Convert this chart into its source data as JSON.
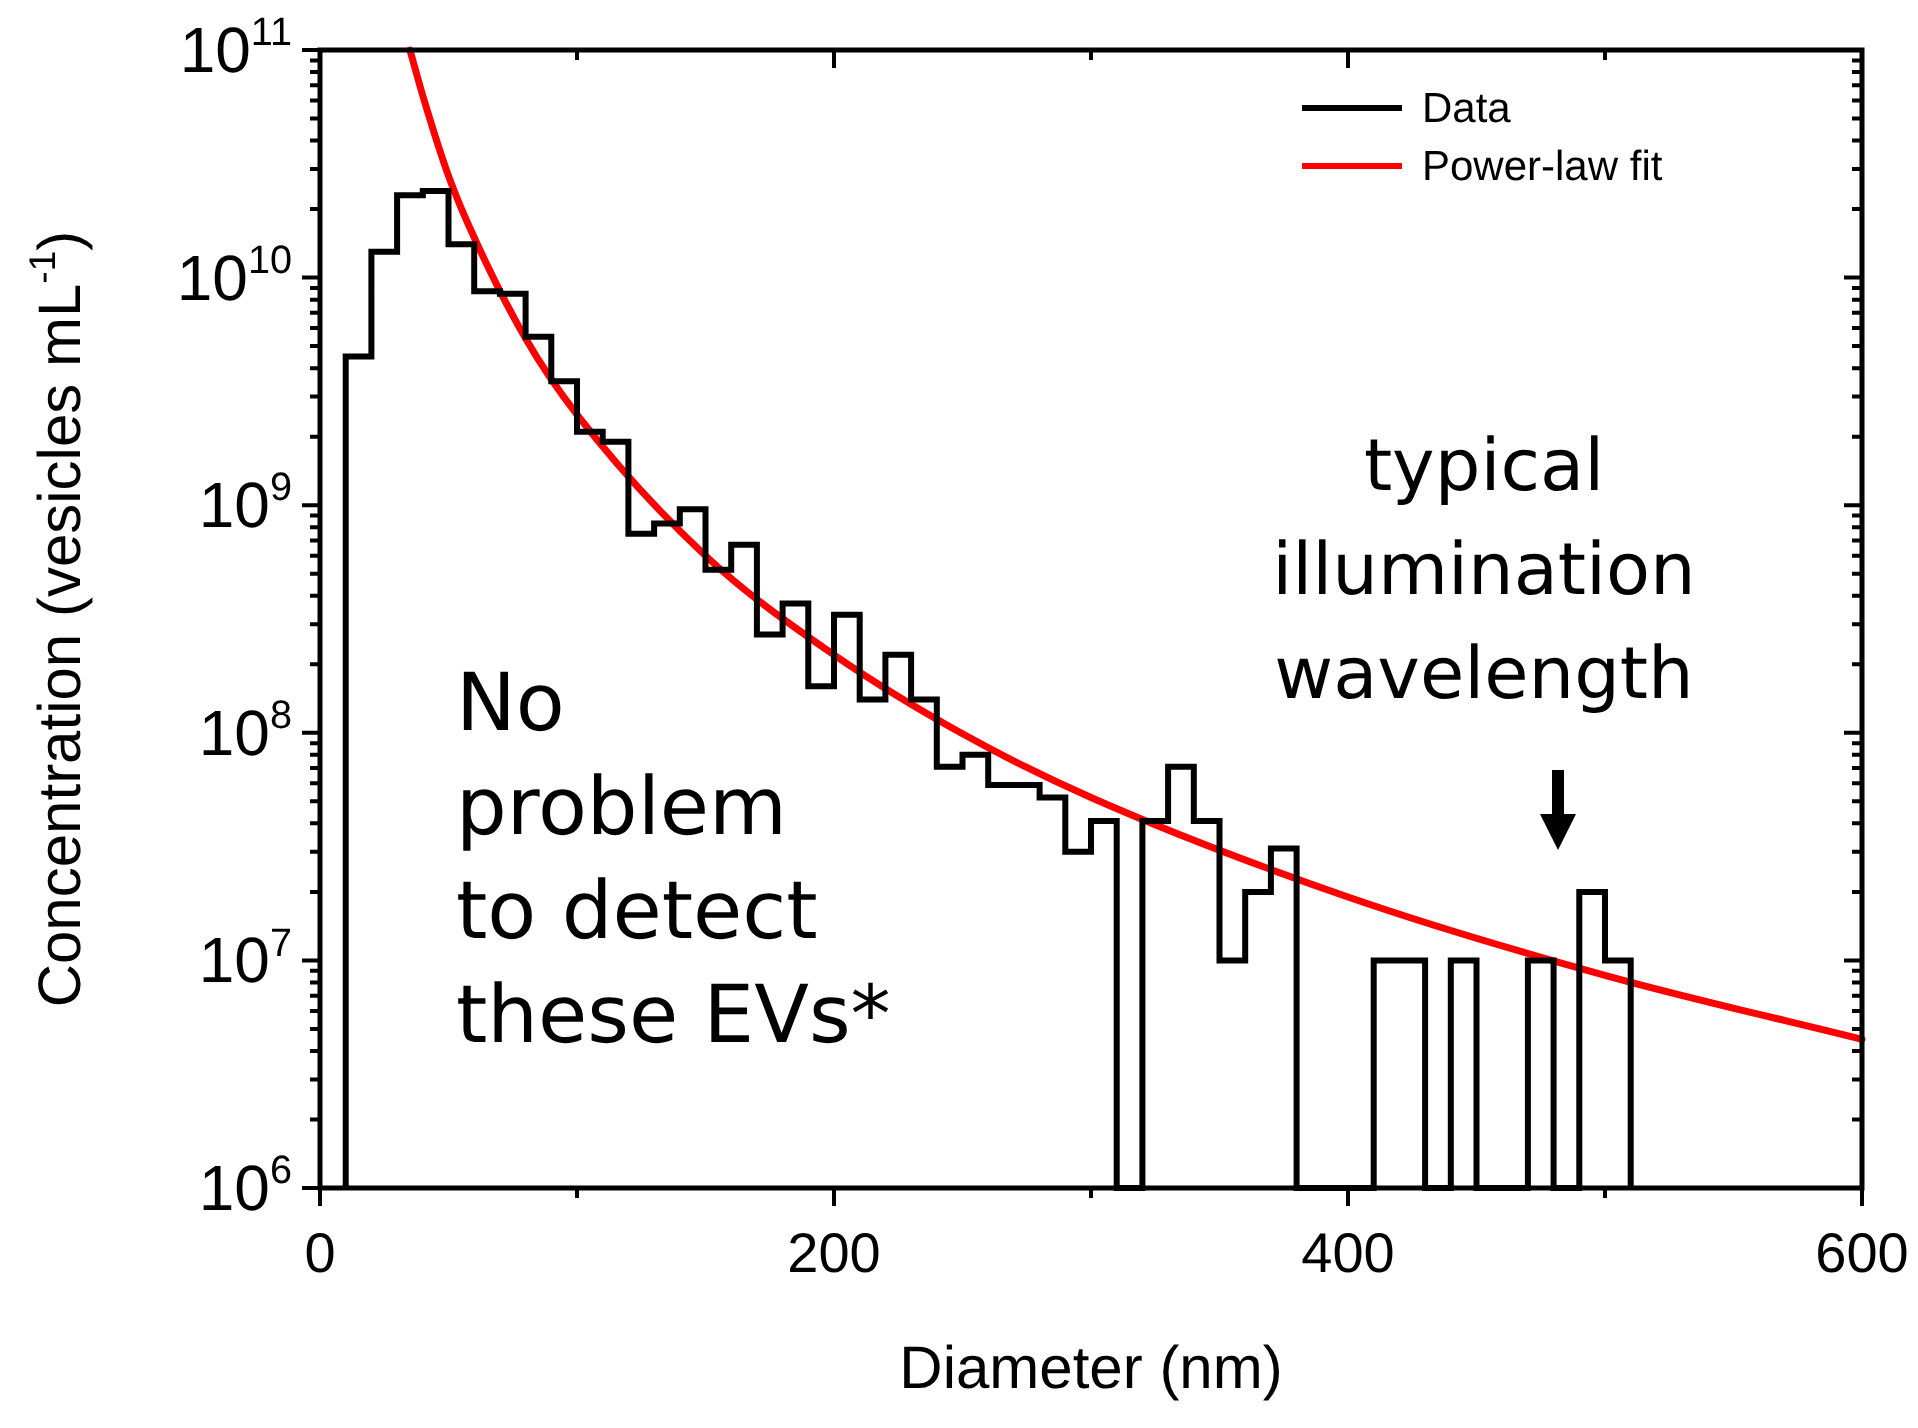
{
  "chart_data": {
    "type": "histogram",
    "xlabel": "Diameter (nm)",
    "ylabel": "Concentration (vesicles mL$^{-1}$)",
    "bins": [
      10,
      20,
      30,
      40,
      50,
      60,
      70,
      80,
      90,
      100,
      110,
      120,
      130,
      140,
      150,
      160,
      170,
      180,
      190,
      200,
      210,
      220,
      230,
      240,
      250,
      260,
      270,
      280,
      290,
      300,
      310,
      320,
      330,
      340,
      350,
      360,
      370,
      380,
      390,
      400,
      410,
      420,
      430,
      440,
      450,
      460,
      470,
      480,
      490,
      500,
      510
    ],
    "series": [
      {
        "name": "Data",
        "color": "#000000",
        "values": [
          4500000000.0,
          13000000000.0,
          23000000000.0,
          24000000000.0,
          14000000000.0,
          8700000000.0,
          8500000000.0,
          5500000000.0,
          3500000000.0,
          2100000000.0,
          1900000000.0,
          750000000.0,
          830000000.0,
          960000000.0,
          520000000.0,
          670000000.0,
          270000000.0,
          370000000.0,
          160000000.0,
          330000000.0,
          140000000.0,
          220000000.0,
          140000000.0,
          71000000.0,
          80000000.0,
          59000000.0,
          59000000.0,
          52000000.0,
          30000000.0,
          41000000.0,
          null,
          41000000.0,
          71000000.0,
          41000000.0,
          10000000.0,
          20000000.0,
          31000000.0,
          null,
          null,
          null,
          10000000.0,
          10000000.0,
          null,
          10000000.0,
          null,
          null,
          10000000.0,
          null,
          20000000.0,
          10000000.0
        ]
      },
      {
        "name": "Power-law fit",
        "type": "line",
        "color": "#ff0000",
        "x": [
          35,
          40,
          50,
          60,
          80,
          100,
          150,
          200,
          250,
          300,
          400,
          500,
          600
        ],
        "values": [
          100000000000.0,
          63000000000.0,
          28000000000.0,
          15000000000.0,
          5400000000.0,
          2500000000.0,
          600000000.0,
          220000000.0,
          99000000.0,
          52000000.0,
          19000000.0,
          8600000.0,
          4500000.0
        ]
      }
    ],
    "xlim": [
      0,
      600
    ],
    "xticks": [
      0,
      {
        "value": 100,
        "label": null
      },
      200,
      {
        "value": 300,
        "label": null
      },
      400,
      {
        "value": 500,
        "label": null
      },
      600
    ],
    "log": "y",
    "ylim": [
      1000000.0,
      100000000000.0
    ],
    "yticks": [
      {
        "value": 1000000.0,
        "label": "10$^{6}$"
      },
      {
        "value": 2000000.0,
        "label": null
      },
      {
        "value": 3000000.0,
        "label": null
      },
      {
        "value": 4000000.0,
        "label": null
      },
      {
        "value": 5000000.0,
        "label": null
      },
      {
        "value": 6000000.0,
        "label": null
      },
      {
        "value": 7000000.0,
        "label": null
      },
      {
        "value": 8000000.0,
        "label": null
      },
      {
        "value": 9000000.0,
        "label": null
      },
      {
        "value": 10000000.0,
        "label": "10$^{7}$"
      },
      {
        "value": 20000000.0,
        "label": null
      },
      {
        "value": 30000000.0,
        "label": null
      },
      {
        "value": 40000000.0,
        "label": null
      },
      {
        "value": 50000000.0,
        "label": null
      },
      {
        "value": 60000000.0,
        "label": null
      },
      {
        "value": 70000000.0,
        "label": null
      },
      {
        "value": 80000000.0,
        "label": null
      },
      {
        "value": 90000000.0,
        "label": null
      },
      {
        "value": 100000000.0,
        "label": "10$^{8}$"
      },
      {
        "value": 200000000.0,
        "label": null
      },
      {
        "value": 300000000.0,
        "label": null
      },
      {
        "value": 400000000.0,
        "label": null
      },
      {
        "value": 500000000.0,
        "label": null
      },
      {
        "value": 600000000.0,
        "label": null
      },
      {
        "value": 700000000.0,
        "label": null
      },
      {
        "value": 800000000.0,
        "label": null
      },
      {
        "value": 900000000.0,
        "label": null
      },
      {
        "value": 1000000000.0,
        "label": "10$^{9}$"
      },
      {
        "value": 2000000000.0,
        "label": null
      },
      {
        "value": 3000000000.0,
        "label": null
      },
      {
        "value": 4000000000.0,
        "label": null
      },
      {
        "value": 5000000000.0,
        "label": null
      },
      {
        "value": 6000000000.0,
        "label": null
      },
      {
        "value": 7000000000.0,
        "label": null
      },
      {
        "value": 8000000000.0,
        "label": null
      },
      {
        "value": 9000000000.0,
        "label": null
      },
      {
        "value": 10000000000.0,
        "label": "10$^{10}$"
      },
      {
        "value": 20000000000.0,
        "label": null
      },
      {
        "value": 30000000000.0,
        "label": null
      },
      {
        "value": 40000000000.0,
        "label": null
      },
      {
        "value": 50000000000.0,
        "label": null
      },
      {
        "value": 60000000000.0,
        "label": null
      },
      {
        "value": 70000000000.0,
        "label": null
      },
      {
        "value": 80000000000.0,
        "label": null
      },
      {
        "value": 90000000000.0,
        "label": null
      },
      {
        "value": 100000000000.0,
        "label": "10$^{11}$"
      }
    ],
    "grid": false,
    "legend": "top right",
    "annotations": [
      "No\nproblem\nto detect\nthese EVs*",
      "typical\nillumination\nwavelength"
    ]
  }
}
